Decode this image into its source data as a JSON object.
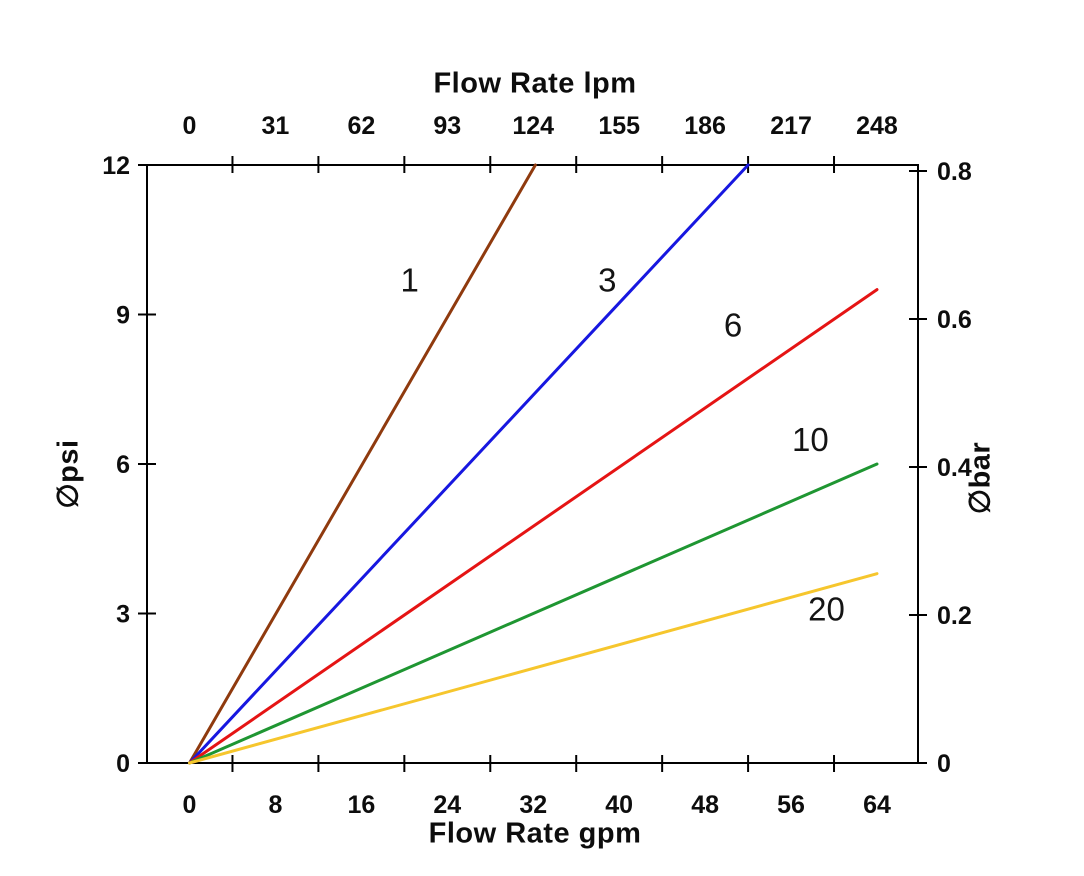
{
  "background": "#ffffff",
  "chart_data": {
    "type": "line",
    "title": "",
    "grid": false,
    "legend": "inline curve labels",
    "axis_color": "#000000",
    "axes": {
      "top": {
        "label": "Flow Rate lpm",
        "tick_labels": [
          "0",
          "31",
          "62",
          "93",
          "124",
          "155",
          "186",
          "217",
          "248"
        ]
      },
      "bottom": {
        "label": "Flow Rate gpm",
        "tick_labels": [
          "0",
          "8",
          "16",
          "24",
          "32",
          "40",
          "48",
          "56",
          "64"
        ],
        "range": [
          0,
          64
        ]
      },
      "left": {
        "label": "∅psi",
        "tick_labels": [
          "0",
          "3",
          "6",
          "9",
          "12"
        ],
        "range": [
          0,
          12
        ]
      },
      "right": {
        "label": "∅bar",
        "tick_labels": [
          "0",
          "0.2",
          "0.4",
          "0.6",
          "0.8"
        ],
        "range": [
          0,
          0.8
        ]
      }
    },
    "series": [
      {
        "name": "1",
        "color": "#8f3a0e",
        "points": [
          [
            0,
            0
          ],
          [
            32.2,
            12
          ]
        ],
        "label_at": [
          20.5,
          9.7
        ]
      },
      {
        "name": "3",
        "color": "#1717e0",
        "points": [
          [
            0,
            0
          ],
          [
            52.0,
            12
          ]
        ],
        "label_at": [
          38.9,
          9.7
        ]
      },
      {
        "name": "6",
        "color": "#e51414",
        "points": [
          [
            0,
            0
          ],
          [
            64,
            9.5
          ]
        ],
        "label_at": [
          50.6,
          8.8
        ]
      },
      {
        "name": "10",
        "color": "#1f9632",
        "points": [
          [
            0,
            0
          ],
          [
            64,
            6.0
          ]
        ],
        "label_at": [
          57.8,
          6.5
        ]
      },
      {
        "name": "20",
        "color": "#f6c62d",
        "points": [
          [
            0,
            0
          ],
          [
            64,
            3.8
          ]
        ],
        "label_at": [
          59.3,
          3.1
        ]
      }
    ]
  }
}
